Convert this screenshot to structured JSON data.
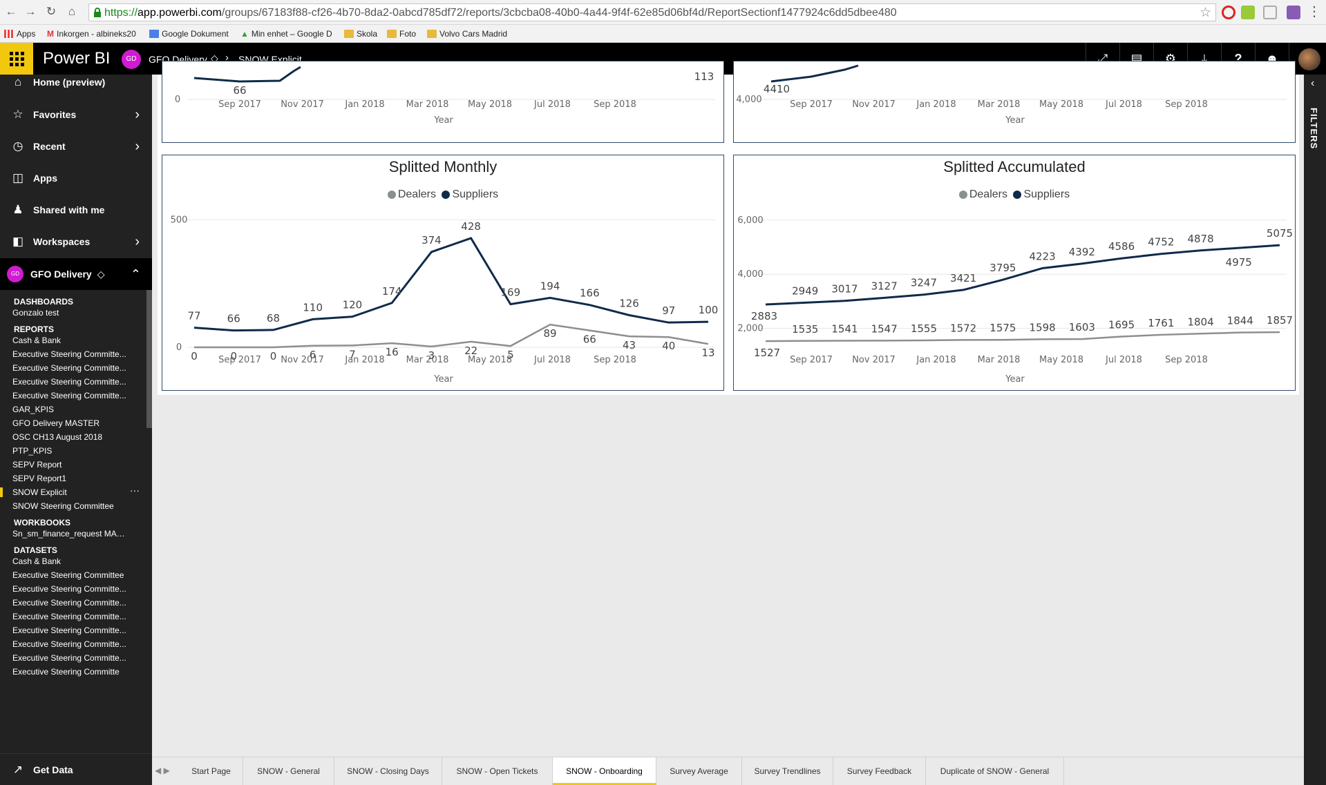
{
  "browser": {
    "url_prefix": "https://",
    "url_host": "app.powerbi.com",
    "url_path": "/groups/67183f88-cf26-4b70-8da2-0abcd785df72/reports/3cbcba08-40b0-4a44-9f4f-62e85d06bf4d/ReportSectionf1477924c6dd5dbee480",
    "bookmarks": [
      "Apps",
      "Inkorgen - albineks20",
      "Google Dokument",
      "Min enhet – Google D",
      "Skola",
      "Foto",
      "Volvo Cars Madrid"
    ]
  },
  "header": {
    "app_name": "Power BI",
    "workspace_initials": "GD",
    "workspace": "GFO Delivery",
    "report": "SNOW Explicit"
  },
  "nav": {
    "home": "Home (preview)",
    "favorites": "Favorites",
    "recent": "Recent",
    "apps": "Apps",
    "shared": "Shared with me",
    "workspaces": "Workspaces",
    "workspace_name": "GFO Delivery",
    "get_data": "Get Data",
    "dashboards_header": "DASHBOARDS",
    "dashboards": [
      "Gonzalo test"
    ],
    "reports_header": "REPORTS",
    "reports": [
      "Cash & Bank",
      "Executive Steering Committe...",
      "Executive Steering Committe...",
      "Executive Steering Committe...",
      "Executive Steering Committe...",
      "GAR_KPIS",
      "GFO Delivery MASTER",
      "OSC CH13 August 2018",
      "PTP_KPIS",
      "SEPV Report",
      "SEPV Report1",
      "SNOW Explicit",
      "SNOW Steering Committee"
    ],
    "workbooks_header": "WORKBOOKS",
    "workbooks": [
      "Sn_sm_finance_request MAST..."
    ],
    "datasets_header": "DATASETS",
    "datasets": [
      "Cash & Bank",
      "Executive Steering Committee",
      "Executive Steering Committe...",
      "Executive Steering Committe...",
      "Executive Steering Committe...",
      "Executive Steering Committe...",
      "Executive Steering Committe...",
      "Executive Steering Committe...",
      "Executive Steering Committe"
    ],
    "more": "···"
  },
  "filters": {
    "label": "FILTERS"
  },
  "tabs": [
    "Start Page",
    "SNOW - General",
    "SNOW - Closing Days",
    "SNOW - Open Tickets",
    "SNOW - Onboarding",
    "Survey Average",
    "Survey Trendlines",
    "Survey Feedback",
    "Duplicate of SNOW - General"
  ],
  "active_tab": "SNOW - Onboarding",
  "colors": {
    "dealers": "#8a8f91",
    "suppliers": "#0f2a4a"
  },
  "chart_data": [
    {
      "type": "line",
      "title": "",
      "note": "partially visible chart (top-left, cut off)",
      "x": [
        "Sep 2017",
        "Nov 2017",
        "Jan 2018",
        "Mar 2018",
        "May 2018",
        "Jul 2018",
        "Sep 2018"
      ],
      "xlabel": "Year",
      "y_ticks": [
        "0"
      ],
      "visible_labels": [
        "66",
        "113"
      ]
    },
    {
      "type": "line",
      "title": "",
      "note": "partially visible chart (top-right, cut off)",
      "x": [
        "Sep 2017",
        "Nov 2017",
        "Jan 2018",
        "Mar 2018",
        "May 2018",
        "Jul 2018",
        "Sep 2018"
      ],
      "xlabel": "Year",
      "y_ticks": [
        "4,000"
      ],
      "visible_labels": [
        "4410"
      ]
    },
    {
      "type": "line",
      "title": "Splitted Monthly",
      "xlabel": "Year",
      "x_ticks": [
        "Sep 2017",
        "Nov 2017",
        "Jan 2018",
        "Mar 2018",
        "May 2018",
        "Jul 2018",
        "Sep 2018"
      ],
      "y_ticks": [
        "0",
        "500"
      ],
      "ylim": [
        0,
        520
      ],
      "series": [
        {
          "name": "Suppliers",
          "values": [
            77,
            66,
            68,
            110,
            120,
            174,
            374,
            428,
            169,
            194,
            166,
            126,
            97,
            100
          ]
        },
        {
          "name": "Dealers",
          "values": [
            0,
            0,
            0,
            6,
            7,
            16,
            3,
            22,
            5,
            89,
            66,
            43,
            40,
            13
          ]
        }
      ]
    },
    {
      "type": "line",
      "title": "Splitted Accumulated",
      "xlabel": "Year",
      "x_ticks": [
        "Sep 2017",
        "Nov 2017",
        "Jan 2018",
        "Mar 2018",
        "May 2018",
        "Jul 2018",
        "Sep 2018"
      ],
      "y_ticks": [
        "2,000",
        "4,000",
        "6,000"
      ],
      "ylim": [
        1300,
        6200
      ],
      "series": [
        {
          "name": "Suppliers",
          "values": [
            2883,
            2949,
            3017,
            3127,
            3247,
            3421,
            3795,
            4223,
            4392,
            4586,
            4752,
            4878,
            4975,
            5075
          ]
        },
        {
          "name": "Dealers",
          "values": [
            1527,
            1535,
            1541,
            1547,
            1555,
            1572,
            1575,
            1598,
            1603,
            1695,
            1761,
            1804,
            1844,
            1857
          ]
        }
      ]
    }
  ],
  "legend": {
    "dealers": "Dealers",
    "suppliers": "Suppliers"
  }
}
